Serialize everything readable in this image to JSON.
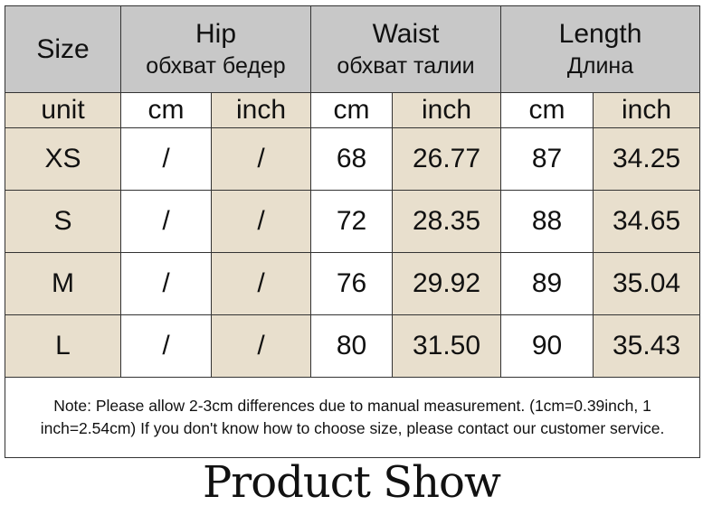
{
  "header": {
    "size_label": "Size",
    "hip": {
      "en": "Hip",
      "ru": "обхват бедер"
    },
    "waist": {
      "en": "Waist",
      "ru": "обхват талии"
    },
    "length": {
      "en": "Length",
      "ru": "Длина"
    }
  },
  "units": [
    "unit",
    "cm",
    "inch",
    "cm",
    "inch",
    "cm",
    "inch"
  ],
  "rows": [
    [
      "XS",
      "/",
      "/",
      "68",
      "26.77",
      "87",
      "34.25"
    ],
    [
      "S",
      "/",
      "/",
      "72",
      "28.35",
      "88",
      "34.65"
    ],
    [
      "M",
      "/",
      "/",
      "76",
      "29.92",
      "89",
      "35.04"
    ],
    [
      "L",
      "/",
      "/",
      "80",
      "31.50",
      "90",
      "35.43"
    ]
  ],
  "note": "Note: Please allow 2-3cm differences due to manual measurement. (1cm=0.39inch, 1 inch=2.54cm)  If you don't know how to choose size, please contact our customer service.",
  "footer_title": "Product Show",
  "colors": {
    "header_bg": "#c8c8c8",
    "beige": "#e8dfcd",
    "border": "#333333"
  }
}
